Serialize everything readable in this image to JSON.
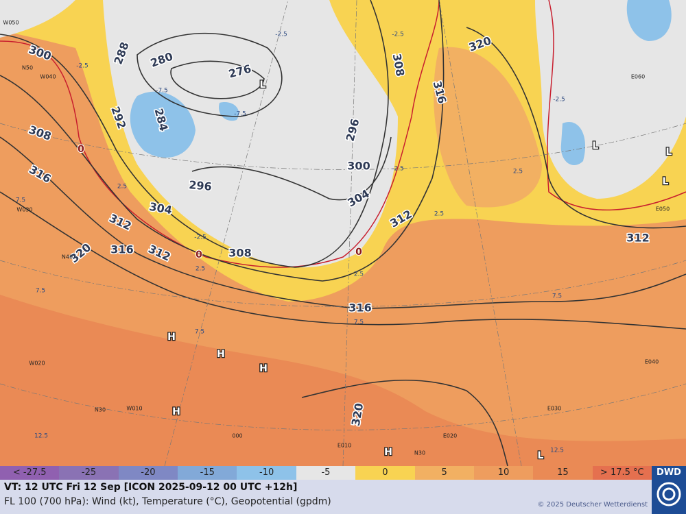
{
  "legend": {
    "items": [
      {
        "label": "< -27.5",
        "color": "#9060b0"
      },
      {
        "label": "-25",
        "color": "#8a72b4"
      },
      {
        "label": "-20",
        "color": "#7f88c4"
      },
      {
        "label": "-15",
        "color": "#82a9d8"
      },
      {
        "label": "-10",
        "color": "#8ec2e9"
      },
      {
        "label": "-5",
        "color": "#e6e6e6"
      },
      {
        "label": "0",
        "color": "#f8d352"
      },
      {
        "label": "5",
        "color": "#f2b062"
      },
      {
        "label": "10",
        "color": "#ee9d5e"
      },
      {
        "label": "15",
        "color": "#ea8a55"
      },
      {
        "label": "> 17.5 °C",
        "color": "#e5704f"
      }
    ]
  },
  "footer": {
    "line1": "VT: 12 UTC Fri  12 Sep [ICON 2025-09-12 00 UTC +12h]",
    "line2": "FL 100 (700 hPa): Wind (kt), Temperature (°C), Geopotential (gpdm)",
    "copyright": "© 2025 Deutscher Wetterdienst",
    "logo": "DWD"
  },
  "map": {
    "contour_labels": [
      "300",
      "288",
      "280",
      "276",
      "292",
      "284",
      "308",
      "316",
      "296",
      "304",
      "312",
      "320",
      "316",
      "312",
      "308",
      "300",
      "304",
      "296",
      "312",
      "308",
      "316",
      "320",
      "312",
      "316",
      "320"
    ],
    "zero_labels": [
      "0",
      "0",
      "0"
    ],
    "highs": [
      "H",
      "H",
      "H",
      "H",
      "H"
    ],
    "lows": [
      "L",
      "L",
      "L",
      "L",
      "L"
    ],
    "temp_labels": [
      "-2.5",
      "-7.5",
      "-7.5",
      "-2.5",
      "2.5",
      "7.5",
      "2.5",
      "-2.5",
      "2.5",
      "7.5",
      "7.5",
      "12.5",
      "12.5",
      "7.5",
      "-2.5",
      "2.5",
      "-2.5",
      "7.5",
      "-2.5",
      "2.5"
    ],
    "grid_labels": [
      "W050",
      "N50",
      "W040",
      "W030",
      "N40",
      "W020",
      "W010",
      "N30",
      "000",
      "E010",
      "E020",
      "E030",
      "E040",
      "E050",
      "E060",
      "N30"
    ]
  }
}
